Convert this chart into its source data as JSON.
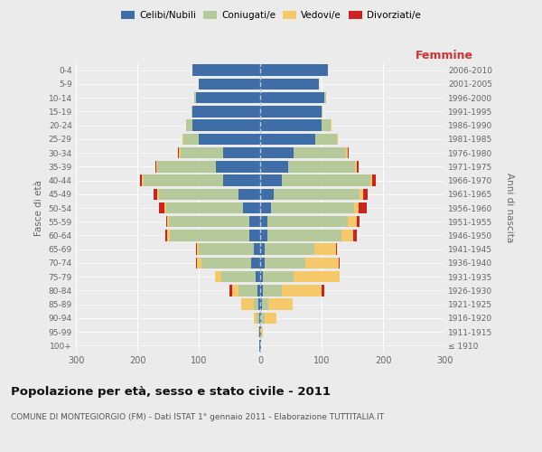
{
  "age_groups": [
    "100+",
    "95-99",
    "90-94",
    "85-89",
    "80-84",
    "75-79",
    "70-74",
    "65-69",
    "60-64",
    "55-59",
    "50-54",
    "45-49",
    "40-44",
    "35-39",
    "30-34",
    "25-29",
    "20-24",
    "15-19",
    "10-14",
    "5-9",
    "0-4"
  ],
  "birth_years": [
    "≤ 1910",
    "1911-1915",
    "1916-1920",
    "1921-1925",
    "1926-1930",
    "1931-1935",
    "1936-1940",
    "1941-1945",
    "1946-1950",
    "1951-1955",
    "1956-1960",
    "1961-1965",
    "1966-1970",
    "1971-1975",
    "1976-1980",
    "1981-1985",
    "1986-1990",
    "1991-1995",
    "1996-2000",
    "2001-2005",
    "2006-2010"
  ],
  "male": {
    "celibi": [
      1,
      1,
      2,
      3,
      5,
      8,
      15,
      10,
      17,
      18,
      28,
      35,
      60,
      72,
      60,
      100,
      110,
      110,
      105,
      100,
      110
    ],
    "coniugati": [
      0,
      1,
      4,
      8,
      30,
      55,
      80,
      90,
      130,
      130,
      125,
      130,
      130,
      95,
      70,
      25,
      10,
      2,
      2,
      0,
      0
    ],
    "vedovi": [
      0,
      1,
      5,
      20,
      10,
      10,
      8,
      3,
      5,
      3,
      3,
      3,
      3,
      2,
      2,
      2,
      1,
      0,
      0,
      0,
      0
    ],
    "divorziati": [
      0,
      0,
      0,
      0,
      5,
      0,
      2,
      2,
      2,
      2,
      8,
      5,
      2,
      2,
      2,
      0,
      0,
      0,
      0,
      0,
      0
    ]
  },
  "female": {
    "nubili": [
      1,
      1,
      2,
      3,
      5,
      5,
      8,
      8,
      12,
      12,
      18,
      22,
      35,
      45,
      55,
      90,
      100,
      100,
      105,
      95,
      110
    ],
    "coniugate": [
      0,
      1,
      5,
      10,
      30,
      50,
      65,
      80,
      120,
      130,
      135,
      140,
      145,
      110,
      85,
      35,
      15,
      2,
      2,
      0,
      0
    ],
    "vedove": [
      0,
      2,
      20,
      40,
      65,
      75,
      55,
      35,
      20,
      15,
      8,
      5,
      3,
      3,
      2,
      2,
      1,
      0,
      0,
      0,
      0
    ],
    "divorziate": [
      0,
      0,
      0,
      0,
      5,
      0,
      2,
      2,
      5,
      5,
      12,
      8,
      5,
      3,
      2,
      0,
      0,
      0,
      0,
      0,
      0
    ]
  },
  "colors": {
    "celibi": "#3e6da8",
    "coniugati": "#b5c99a",
    "vedovi": "#f5c96a",
    "divorziati": "#cc2222"
  },
  "title": "Popolazione per età, sesso e stato civile - 2011",
  "subtitle": "COMUNE DI MONTEGIORGIO (FM) - Dati ISTAT 1° gennaio 2011 - Elaborazione TUTTITALIA.IT",
  "xlabel_right": "Femmine",
  "ylabel_left": "Fasce di età",
  "ylabel_right": "Anni di nascita",
  "xlim": 300,
  "bg_color": "#ebebeb"
}
